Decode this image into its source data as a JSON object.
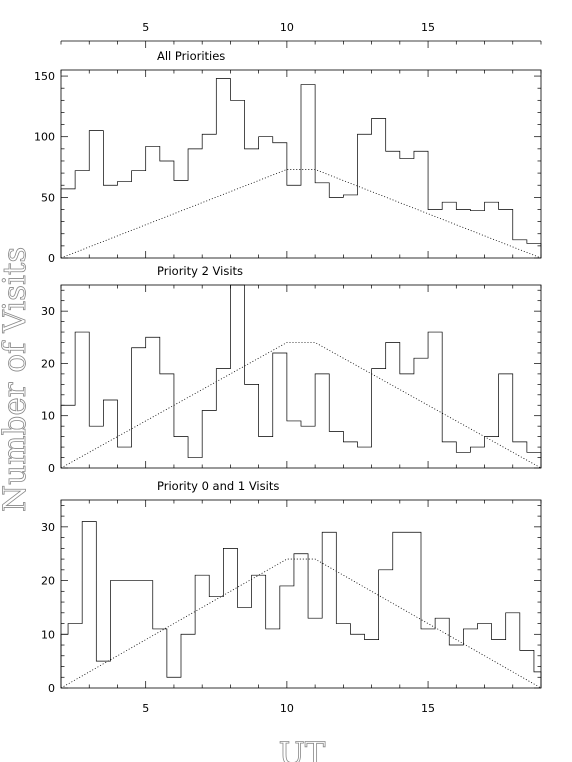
{
  "chart_data": [
    {
      "type": "histogram",
      "title": "All Priorities",
      "xlabel": "UT",
      "ylabel": "Number of Visits",
      "xlim": [
        2,
        19
      ],
      "ylim": [
        0,
        155
      ],
      "yticks": [
        0,
        50,
        100,
        150
      ],
      "xticks": [
        5,
        10,
        15
      ],
      "bin_edges": [
        2.0,
        2.5,
        3.0,
        3.5,
        4.0,
        4.5,
        5.0,
        5.5,
        6.0,
        6.5,
        7.0,
        7.5,
        8.0,
        8.5,
        9.0,
        9.5,
        10.0,
        10.5,
        11.0,
        11.5,
        12.0,
        12.5,
        13.0,
        13.5,
        14.0,
        14.5,
        15.0,
        15.5,
        16.0,
        16.5,
        17.0,
        17.5,
        18.0,
        18.5,
        19.0
      ],
      "values": [
        57,
        72,
        105,
        60,
        63,
        72,
        92,
        80,
        64,
        90,
        102,
        148,
        130,
        90,
        100,
        95,
        60,
        143,
        62,
        50,
        52,
        102,
        115,
        88,
        82,
        88,
        40,
        46,
        40,
        39,
        46,
        40,
        15,
        12
      ],
      "expected_line": {
        "x": [
          2.0,
          10.0,
          11.0,
          19.0
        ],
        "y": [
          0,
          73,
          73,
          0
        ]
      }
    },
    {
      "type": "histogram",
      "title": "Priority 2 Visits",
      "xlim": [
        2,
        19
      ],
      "ylim": [
        0,
        35
      ],
      "yticks": [
        0,
        10,
        20,
        30
      ],
      "xticks": [
        5,
        10,
        15
      ],
      "bin_edges": [
        2.0,
        2.5,
        3.0,
        3.5,
        4.0,
        4.5,
        5.0,
        5.5,
        6.0,
        6.5,
        7.0,
        7.5,
        8.0,
        8.5,
        9.0,
        9.5,
        10.0,
        10.5,
        11.0,
        11.5,
        12.0,
        12.5,
        13.0,
        13.5,
        14.0,
        14.5,
        15.0,
        15.5,
        16.0,
        16.5,
        17.0,
        17.5,
        18.0,
        18.5,
        19.0
      ],
      "values": [
        12,
        26,
        8,
        13,
        4,
        23,
        25,
        18,
        6,
        2,
        11,
        19,
        35,
        16,
        6,
        22,
        9,
        8,
        18,
        7,
        5,
        4,
        19,
        24,
        18,
        21,
        26,
        5,
        3,
        4,
        6,
        18,
        5,
        3
      ],
      "expected_line": {
        "x": [
          2.0,
          10.0,
          11.0,
          19.0
        ],
        "y": [
          0,
          24,
          24,
          0
        ]
      }
    },
    {
      "type": "histogram",
      "title": "Priority 0 and 1 Visits",
      "xlim": [
        2,
        19
      ],
      "ylim": [
        0,
        35
      ],
      "yticks": [
        0,
        10,
        20,
        30
      ],
      "xticks": [
        5,
        10,
        15
      ],
      "bin_edges": [
        2.0,
        2.25,
        2.75,
        3.25,
        3.75,
        4.25,
        5.25,
        5.75,
        6.25,
        6.75,
        7.25,
        7.75,
        8.25,
        8.75,
        9.25,
        9.75,
        10.25,
        10.75,
        11.25,
        11.75,
        12.25,
        12.75,
        13.25,
        13.75,
        14.25,
        14.75,
        15.25,
        15.75,
        16.25,
        16.75,
        17.25,
        17.75,
        18.25,
        18.75,
        19.0
      ],
      "values": [
        10,
        12,
        31,
        5,
        20,
        20,
        11,
        2,
        10,
        21,
        17,
        26,
        15,
        21,
        11,
        19,
        25,
        13,
        29,
        12,
        10,
        9,
        22,
        29,
        29,
        11,
        13,
        8,
        11,
        12,
        9,
        14,
        7,
        3
      ],
      "expected_line": {
        "x": [
          2.0,
          10.0,
          11.0,
          19.0
        ],
        "y": [
          0,
          24,
          24,
          0
        ]
      }
    }
  ],
  "top_axis": {
    "ticks": [
      5,
      10,
      15
    ]
  },
  "labels": {
    "ylabel": "Number of Visits",
    "xlabel": "UT"
  }
}
